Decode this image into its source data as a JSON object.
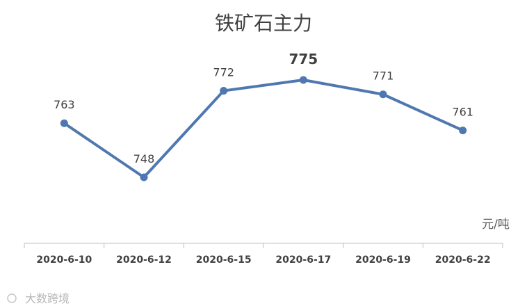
{
  "chart_data": {
    "type": "line",
    "title": "铁矿石主力",
    "categories": [
      "2020-6-10",
      "2020-6-12",
      "2020-6-15",
      "2020-6-17",
      "2020-6-19",
      "2020-6-22"
    ],
    "values": [
      763,
      748,
      772,
      775,
      771,
      761
    ],
    "unit": "元/吨",
    "highlight_index": 3,
    "line_color": "#4f78b0",
    "grid": false,
    "legend": "none"
  },
  "watermark": "大数跨境"
}
